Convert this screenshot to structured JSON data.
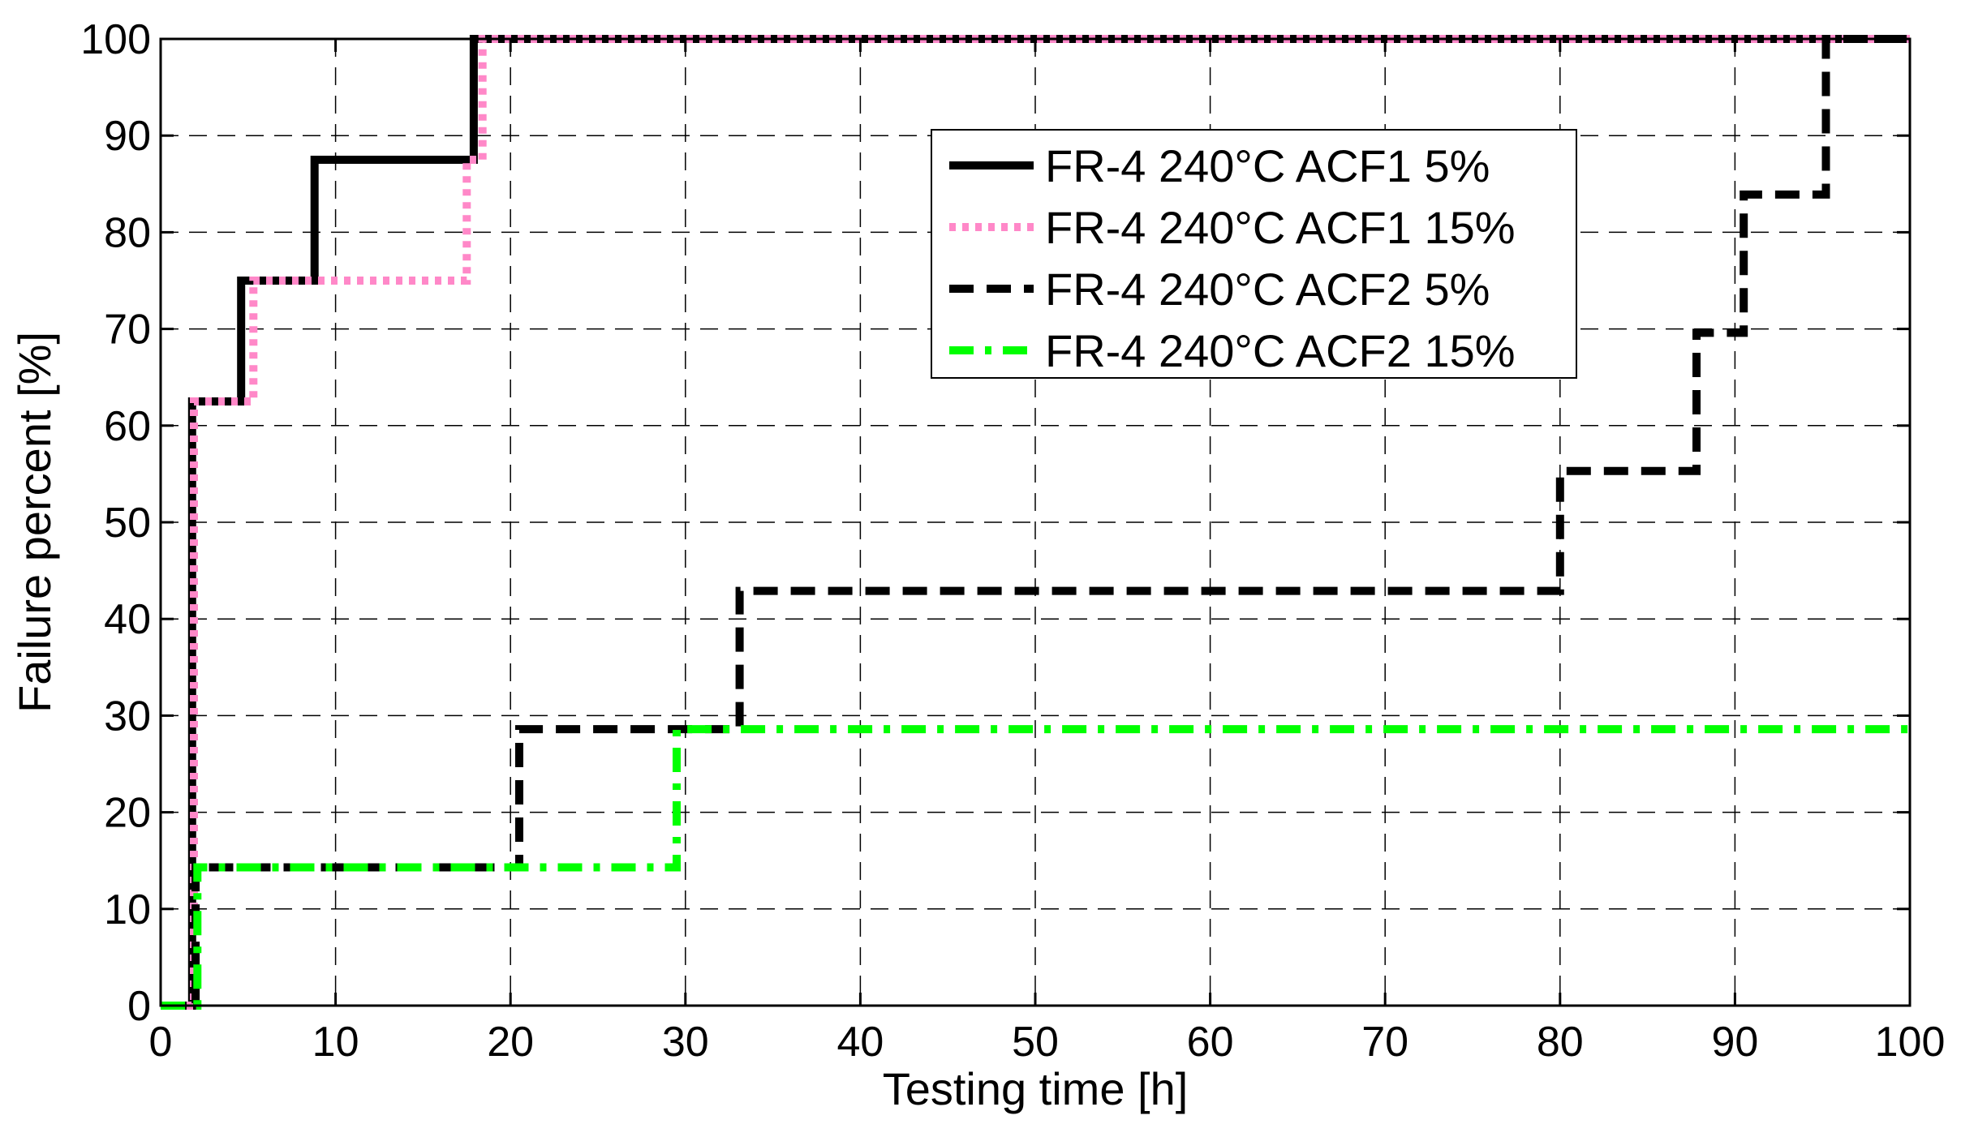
{
  "chart_data": {
    "type": "line",
    "xlabel": "Testing time [h]",
    "ylabel": "Failure percent [%]",
    "xlim": [
      0,
      100
    ],
    "ylim": [
      0,
      100
    ],
    "xticks": [
      0,
      10,
      20,
      30,
      40,
      50,
      60,
      70,
      80,
      90,
      100
    ],
    "yticks": [
      0,
      10,
      20,
      30,
      40,
      50,
      60,
      70,
      80,
      90,
      100
    ],
    "grid": true,
    "step": true,
    "legend_position": "top-right",
    "series": [
      {
        "name": "FR-4 240°C ACF1 5%",
        "color": "#000000",
        "style": "solid",
        "points": [
          [
            0,
            0
          ],
          [
            1.8,
            0
          ],
          [
            1.8,
            62.5
          ],
          [
            4.6,
            62.5
          ],
          [
            4.6,
            75
          ],
          [
            8.8,
            75
          ],
          [
            8.8,
            87.5
          ],
          [
            17.9,
            87.5
          ],
          [
            17.9,
            100
          ],
          [
            100,
            100
          ]
        ]
      },
      {
        "name": "FR-4 240°C ACF1 15%",
        "color": "#ff88c8",
        "style": "dotted",
        "points": [
          [
            0,
            0
          ],
          [
            1.9,
            0
          ],
          [
            1.9,
            62.5
          ],
          [
            5.3,
            62.5
          ],
          [
            5.3,
            75
          ],
          [
            17.5,
            75
          ],
          [
            17.5,
            87.5
          ],
          [
            18.4,
            87.5
          ],
          [
            18.4,
            100
          ],
          [
            100,
            100
          ]
        ]
      },
      {
        "name": "FR-4 240°C ACF2 5%",
        "color": "#000000",
        "style": "dashed",
        "points": [
          [
            0,
            0
          ],
          [
            2,
            0
          ],
          [
            2,
            14.3
          ],
          [
            20.5,
            14.3
          ],
          [
            20.5,
            28.6
          ],
          [
            33.1,
            28.6
          ],
          [
            33.1,
            42.9
          ],
          [
            80,
            42.9
          ],
          [
            80,
            55.3
          ],
          [
            87.8,
            55.3
          ],
          [
            87.8,
            69.6
          ],
          [
            90.5,
            69.6
          ],
          [
            90.5,
            83.9
          ],
          [
            95.2,
            83.9
          ],
          [
            95.2,
            100
          ],
          [
            100,
            100
          ]
        ]
      },
      {
        "name": "FR-4 240°C ACF2 15%",
        "color": "#00ff00",
        "style": "dashdot",
        "points": [
          [
            0,
            0
          ],
          [
            2.1,
            0
          ],
          [
            2.1,
            14.3
          ],
          [
            29.5,
            14.3
          ],
          [
            29.5,
            28.6
          ],
          [
            100,
            28.6
          ]
        ]
      }
    ]
  }
}
